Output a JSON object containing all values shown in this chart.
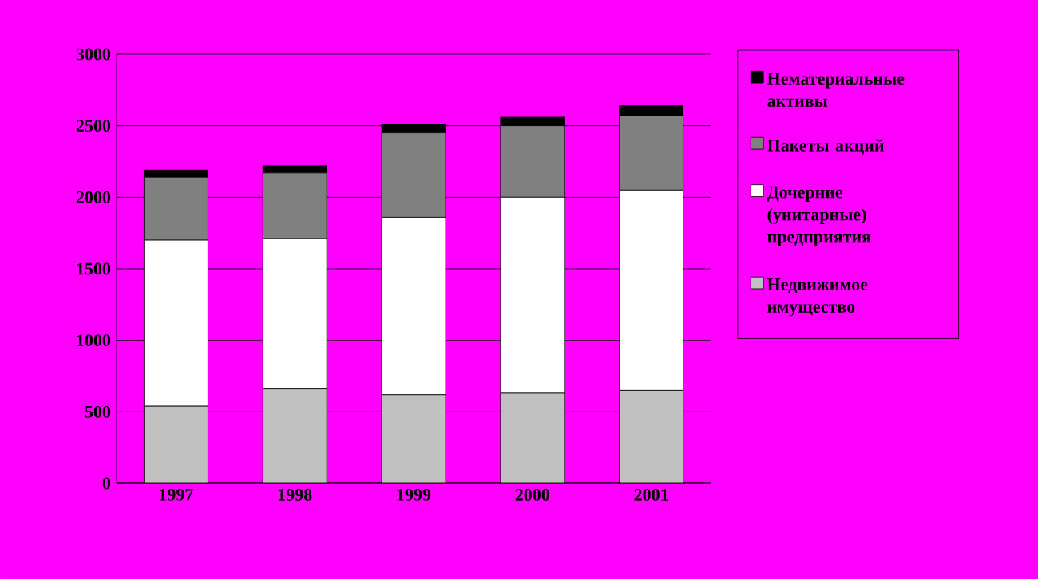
{
  "chart_data": {
    "type": "bar",
    "stacked": true,
    "categories": [
      "1997",
      "1998",
      "1999",
      "2000",
      "2001"
    ],
    "series": [
      {
        "name": "Недвижимое имущество",
        "color": "#c0c0c0",
        "values": [
          540,
          660,
          620,
          630,
          650
        ]
      },
      {
        "name": "Дочерние (унитарные) предприятия",
        "color": "#ffffff",
        "values": [
          1160,
          1050,
          1240,
          1370,
          1400
        ]
      },
      {
        "name": "Пакеты акций",
        "color": "#808080",
        "values": [
          440,
          460,
          590,
          500,
          520
        ]
      },
      {
        "name": "Нематериальные активы",
        "color": "#000000",
        "values": [
          50,
          50,
          60,
          60,
          70
        ]
      }
    ],
    "ylim": [
      0,
      3000
    ],
    "yticks": [
      0,
      500,
      1000,
      1500,
      2000,
      2500,
      3000
    ],
    "grid": "y",
    "legend": "right"
  }
}
